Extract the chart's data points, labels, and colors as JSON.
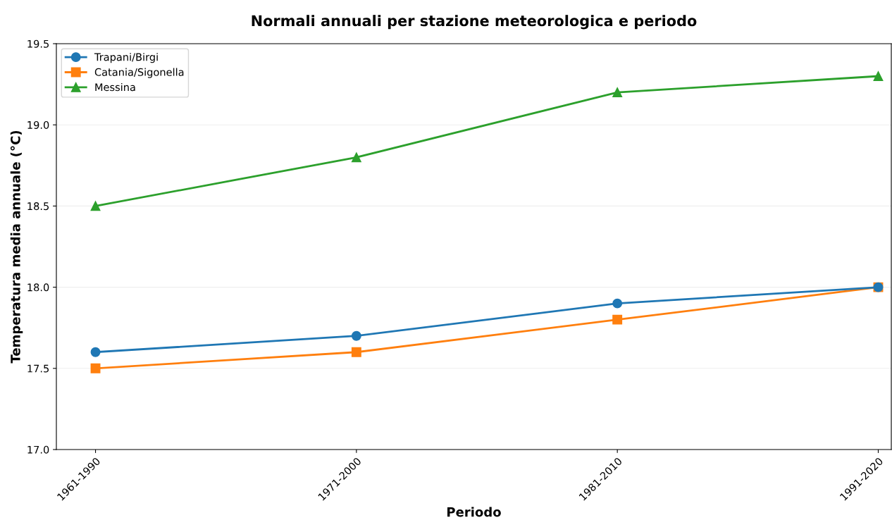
{
  "chart_data": {
    "type": "line",
    "title": "Normali annuali per stazione meteorologica e periodo",
    "xlabel": "Periodo",
    "ylabel": "Temperatura media annuale (°C)",
    "categories": [
      "1961-1990",
      "1971-2000",
      "1981-2010",
      "1991-2020"
    ],
    "series": [
      {
        "name": "Trapani/Birgi",
        "color": "#1f77b4",
        "marker": "circle",
        "values": [
          17.6,
          17.7,
          17.9,
          18.0
        ]
      },
      {
        "name": "Catania/Sigonella",
        "color": "#ff7f0e",
        "marker": "square",
        "values": [
          17.5,
          17.6,
          17.8,
          18.0
        ]
      },
      {
        "name": "Messina",
        "color": "#2ca02c",
        "marker": "triangle",
        "values": [
          18.5,
          18.8,
          19.2,
          19.3
        ]
      }
    ],
    "ylim": [
      17.0,
      19.5
    ],
    "yticks": [
      {
        "value": 17.0,
        "label": "17.0"
      },
      {
        "value": 17.5,
        "label": "17.5"
      },
      {
        "value": 18.0,
        "label": "18.0"
      },
      {
        "value": 18.5,
        "label": "18.5"
      },
      {
        "value": 19.0,
        "label": "19.0"
      },
      {
        "value": 19.5,
        "label": "19.5"
      }
    ],
    "grid": "y",
    "legend": "top left",
    "line_style": "solid"
  }
}
